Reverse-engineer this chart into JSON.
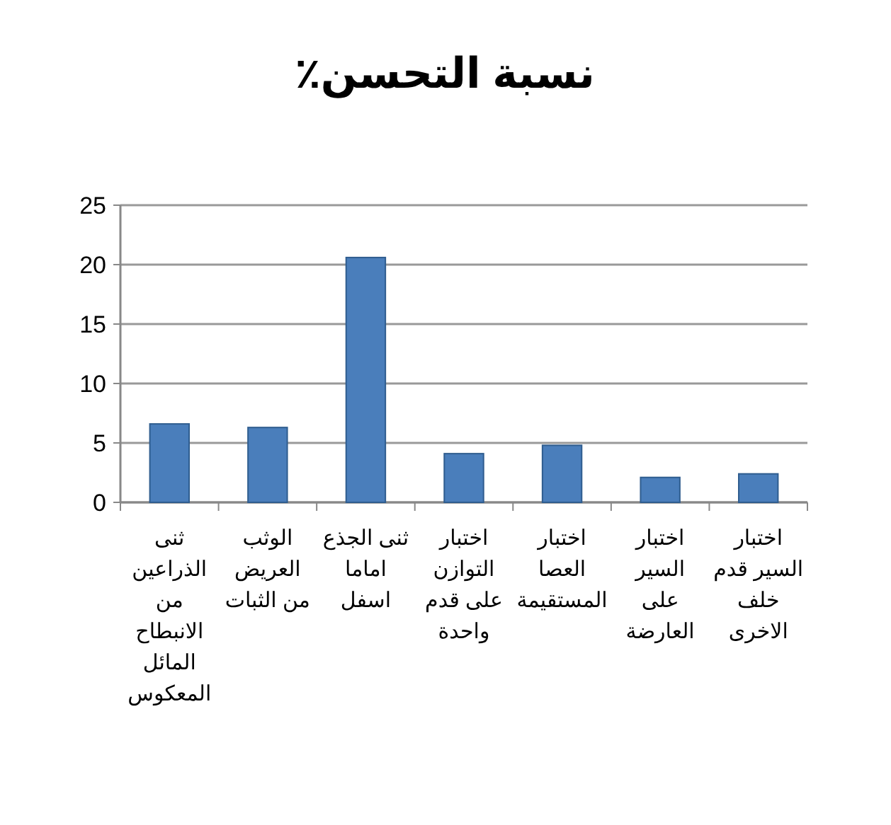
{
  "chart_data": {
    "type": "bar",
    "title": "نسبة التحسن٪",
    "categories": [
      "ثنى الذراعين من الانبطاح المائل المعكوس",
      "الوثب العريض من الثبات",
      "ثنى الجذع اماما اسفل",
      "اختبار التوازن على قدم واحدة",
      "اختبار العصا المستقيمة",
      "اختبار السير على العارضة",
      "اختبار السير قدم خلف الاخرى"
    ],
    "values": [
      6.6,
      6.3,
      20.6,
      4.1,
      4.8,
      2.1,
      2.4
    ],
    "color": "#4a7ebb",
    "ylim": [
      0,
      25
    ],
    "yticks": [
      0,
      5,
      10,
      15,
      20,
      25
    ],
    "grid": "y"
  }
}
